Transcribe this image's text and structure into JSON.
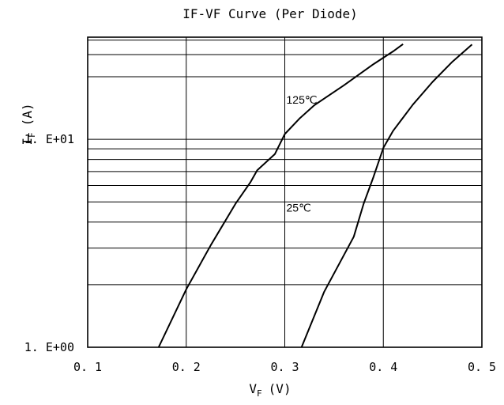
{
  "chart_data": {
    "type": "line",
    "title": "IF-VF Curve (Per Diode)",
    "xlabel": {
      "main": "V",
      "sub": "F",
      "unit": "(V)"
    },
    "ylabel": {
      "main": "I",
      "sub": "F",
      "unit": "(A)"
    },
    "x_scale": "linear",
    "y_scale": "log",
    "xlim": [
      0.1,
      0.5
    ],
    "ylim": [
      1,
      31
    ],
    "x_ticks": [
      {
        "value": 0.1,
        "label": "0. 1"
      },
      {
        "value": 0.2,
        "label": "0. 2"
      },
      {
        "value": 0.3,
        "label": "0. 3"
      },
      {
        "value": 0.4,
        "label": "0. 4"
      },
      {
        "value": 0.5,
        "label": "0. 5"
      }
    ],
    "y_ticks": [
      {
        "value": 1,
        "label": "1. E+00"
      },
      {
        "value": 10,
        "label": "1. E+01"
      }
    ],
    "y_grid_values": [
      2,
      3,
      4,
      5,
      6,
      7,
      8,
      9,
      10,
      20,
      30
    ],
    "grid": true,
    "legend": "none",
    "line_color": "#000000",
    "series": [
      {
        "annotation": "125℃",
        "annotation_at": {
          "x": 0.3,
          "y": 15.5
        },
        "x": [
          0.172,
          0.2,
          0.225,
          0.25,
          0.265,
          0.272,
          0.29,
          0.3,
          0.315,
          0.33,
          0.36,
          0.39,
          0.41,
          0.42
        ],
        "y": [
          1.0,
          1.9,
          3.1,
          4.9,
          6.2,
          7.1,
          8.5,
          10.6,
          12.6,
          14.6,
          18.2,
          23.0,
          26.5,
          28.7
        ]
      },
      {
        "annotation": "25℃",
        "annotation_at": {
          "x": 0.3,
          "y": 4.7
        },
        "x": [
          0.317,
          0.34,
          0.37,
          0.38,
          0.39,
          0.4,
          0.41,
          0.43,
          0.45,
          0.47,
          0.49
        ],
        "y": [
          1.0,
          1.85,
          3.4,
          4.9,
          6.6,
          9.1,
          11.0,
          14.7,
          18.9,
          23.6,
          28.6
        ]
      }
    ]
  }
}
